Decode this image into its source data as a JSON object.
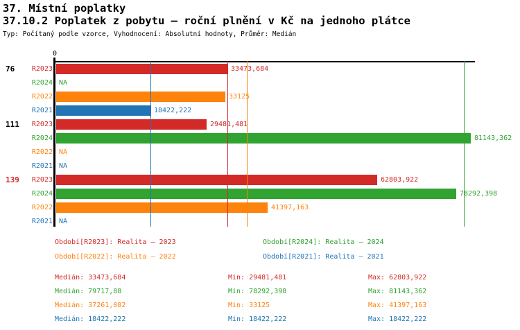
{
  "header": {
    "title": "37. Místní poplatky",
    "subtitle": "37.10.2 Poplatek z pobytu – roční plnění v Kč na jednoho plátce",
    "meta": "Typ: Počítaný podle vzorce, Vyhodnocení: Absolutní hodnoty, Průměr: Medián"
  },
  "colors": {
    "R2023": "#d32a28",
    "R2024": "#30a330",
    "R2022": "#fd830d",
    "R2021": "#2374b5",
    "axis": "#000000"
  },
  "chart_data": {
    "type": "bar",
    "orientation": "horizontal",
    "title": "37.10.2 Poplatek z pobytu – roční plnění v Kč na jednoho plátce",
    "xlabel": "",
    "ylabel": "",
    "xlim": [
      0,
      81900
    ],
    "axis_zero_label": "0",
    "grid": false,
    "series_order": [
      "R2023",
      "R2024",
      "R2022",
      "R2021"
    ],
    "groups": [
      {
        "label": "76",
        "label_color": "#000000",
        "bars": [
          {
            "series": "R2023",
            "value": 33473.684,
            "display": "33473,684"
          },
          {
            "series": "R2024",
            "value": null,
            "display": "NA"
          },
          {
            "series": "R2022",
            "value": 33125,
            "display": "33125"
          },
          {
            "series": "R2021",
            "value": 18422.222,
            "display": "18422,222"
          }
        ]
      },
      {
        "label": "111",
        "label_color": "#000000",
        "bars": [
          {
            "series": "R2023",
            "value": 29481.481,
            "display": "29481,481"
          },
          {
            "series": "R2024",
            "value": 81143.362,
            "display": "81143,362"
          },
          {
            "series": "R2022",
            "value": null,
            "display": "NA"
          },
          {
            "series": "R2021",
            "value": null,
            "display": "NA"
          }
        ]
      },
      {
        "label": "139",
        "label_color": "#d32a28",
        "bars": [
          {
            "series": "R2023",
            "value": 62803.922,
            "display": "62803,922"
          },
          {
            "series": "R2024",
            "value": 78292.398,
            "display": "78292,398"
          },
          {
            "series": "R2022",
            "value": 41397.163,
            "display": "41397,163"
          },
          {
            "series": "R2021",
            "value": null,
            "display": "NA"
          }
        ]
      }
    ],
    "median_lines": [
      {
        "series": "R2023",
        "value": 33473.684
      },
      {
        "series": "R2024",
        "value": 79717.88
      },
      {
        "series": "R2022",
        "value": 37261.082
      },
      {
        "series": "R2021",
        "value": 18422.222
      }
    ]
  },
  "legend": {
    "items": [
      {
        "series": "R2023",
        "label": "Období[R2023]: Realita – 2023"
      },
      {
        "series": "R2024",
        "label": "Období[R2024]: Realita – 2024"
      },
      {
        "series": "R2022",
        "label": "Období[R2022]: Realita – 2022"
      },
      {
        "series": "R2021",
        "label": "Období[R2021]: Realita – 2021"
      }
    ]
  },
  "stats": {
    "rows": [
      {
        "series": "R2023",
        "median": "Medián: 33473,684",
        "min": "Min: 29481,481",
        "max": "Max: 62803,922"
      },
      {
        "series": "R2024",
        "median": "Medián: 79717,88",
        "min": "Min: 78292,398",
        "max": "Max: 81143,362"
      },
      {
        "series": "R2022",
        "median": "Medián: 37261,082",
        "min": "Min: 33125",
        "max": "Max: 41397,163"
      },
      {
        "series": "R2021",
        "median": "Medián: 18422,222",
        "min": "Min: 18422,222",
        "max": "Max: 18422,222"
      }
    ]
  }
}
